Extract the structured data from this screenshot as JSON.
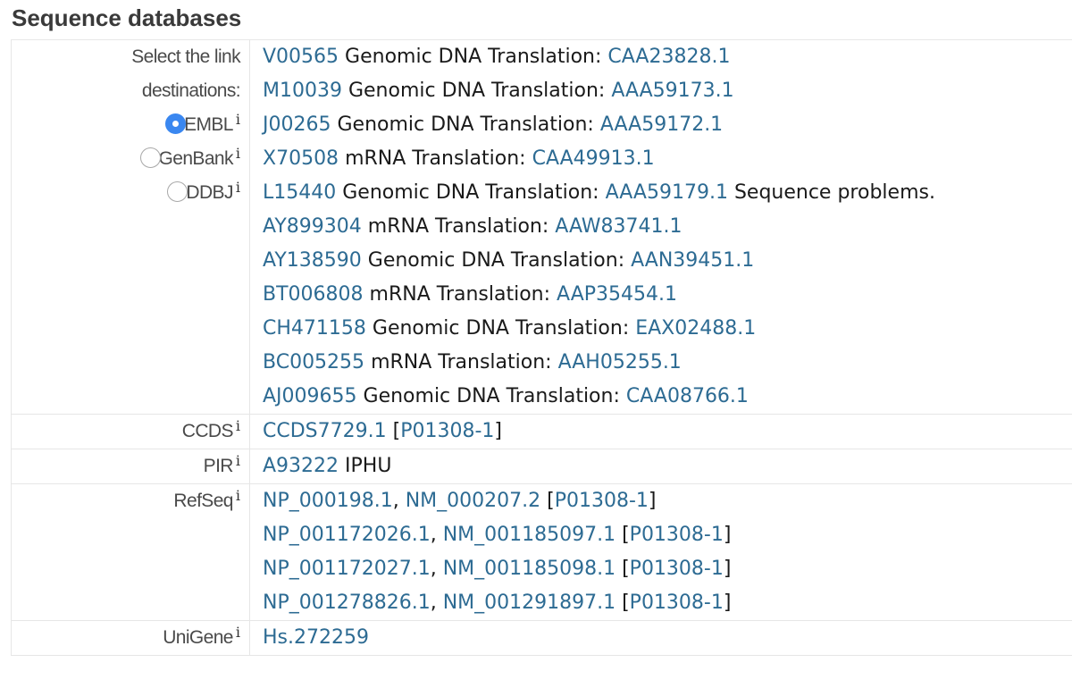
{
  "section_title": "Sequence databases",
  "info_glyph": "i",
  "embl_row": {
    "label_line1": "Select the link",
    "label_line2": "destinations:",
    "options": [
      {
        "label": "EMBL",
        "selected": true
      },
      {
        "label": "GenBank",
        "selected": false
      },
      {
        "label": "DDBJ",
        "selected": false
      }
    ],
    "entries": [
      {
        "acc": "V00565",
        "type": "Genomic DNA Translation:",
        "prot": "CAA23828.1",
        "note": ""
      },
      {
        "acc": "M10039",
        "type": "Genomic DNA Translation:",
        "prot": "AAA59173.1",
        "note": ""
      },
      {
        "acc": "J00265",
        "type": "Genomic DNA Translation:",
        "prot": "AAA59172.1",
        "note": ""
      },
      {
        "acc": "X70508",
        "type": "mRNA Translation:",
        "prot": "CAA49913.1",
        "note": ""
      },
      {
        "acc": "L15440",
        "type": "Genomic DNA Translation:",
        "prot": "AAA59179.1",
        "note": "Sequence problems."
      },
      {
        "acc": "AY899304",
        "type": "mRNA Translation:",
        "prot": "AAW83741.1",
        "note": ""
      },
      {
        "acc": "AY138590",
        "type": "Genomic DNA Translation:",
        "prot": "AAN39451.1",
        "note": ""
      },
      {
        "acc": "BT006808",
        "type": "mRNA Translation:",
        "prot": "AAP35454.1",
        "note": ""
      },
      {
        "acc": "CH471158",
        "type": "Genomic DNA Translation:",
        "prot": "EAX02488.1",
        "note": ""
      },
      {
        "acc": "BC005255",
        "type": "mRNA Translation:",
        "prot": "AAH05255.1",
        "note": ""
      },
      {
        "acc": "AJ009655",
        "type": "Genomic DNA Translation:",
        "prot": "CAA08766.1",
        "note": ""
      }
    ]
  },
  "ccds": {
    "label": "CCDS",
    "id": "CCDS7729.1",
    "iso": "P01308-1"
  },
  "pir": {
    "label": "PIR",
    "id": "A93222",
    "name": "IPHU"
  },
  "refseq": {
    "label": "RefSeq",
    "entries": [
      {
        "np": "NP_000198.1",
        "nm": "NM_000207.2",
        "iso": "P01308-1"
      },
      {
        "np": "NP_001172026.1",
        "nm": "NM_001185097.1",
        "iso": "P01308-1"
      },
      {
        "np": "NP_001172027.1",
        "nm": "NM_001185098.1",
        "iso": "P01308-1"
      },
      {
        "np": "NP_001278826.1",
        "nm": "NM_001291897.1",
        "iso": "P01308-1"
      }
    ]
  },
  "unigene": {
    "label": "UniGene",
    "id": "Hs.272259"
  },
  "colors": {
    "link": "#2d6b93",
    "radio_selected": "#3a87f0",
    "title": "#3a3a3a"
  }
}
